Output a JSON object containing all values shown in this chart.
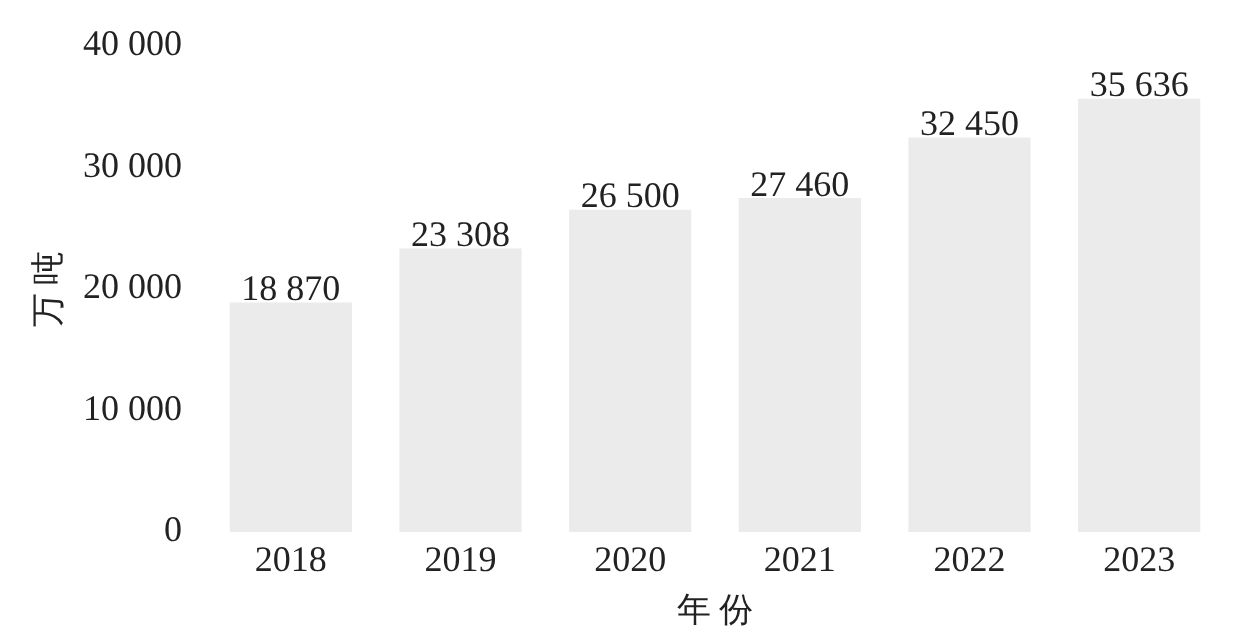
{
  "chart_data": {
    "type": "bar",
    "data_labels": true,
    "xlabel": "年 份",
    "ylabel": "万 吨",
    "categories": [
      "2018",
      "2019",
      "2020",
      "2021",
      "2022",
      "2023"
    ],
    "values": [
      18870,
      23308,
      26500,
      27460,
      32450,
      35636
    ],
    "color": "#ebebeb",
    "ylim": [
      0,
      40000
    ],
    "yticks": [
      {
        "value": 0,
        "label": "0"
      },
      {
        "value": 10000,
        "label": "10 000"
      },
      {
        "value": 20000,
        "label": "20 000"
      },
      {
        "value": 30000,
        "label": "30 000"
      },
      {
        "value": 40000,
        "label": "40 000"
      }
    ],
    "grid": false
  }
}
